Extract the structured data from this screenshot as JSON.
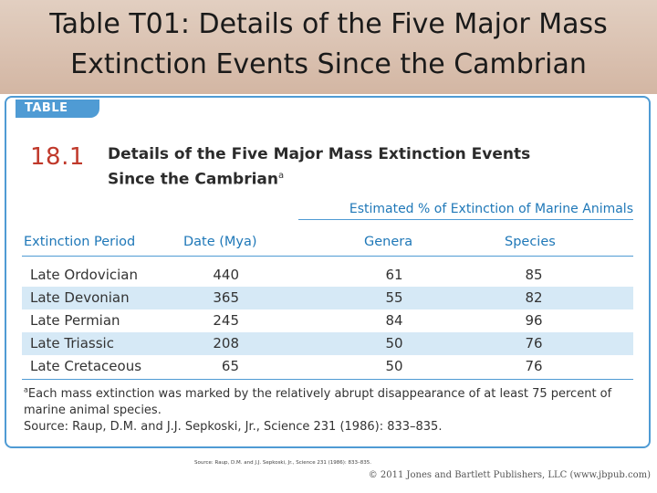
{
  "slide": {
    "title_line1": "Table T01: Details of the Five Major Mass",
    "title_line2": "Extinction Events Since the Cambrian"
  },
  "table": {
    "tab_label": "TABLE",
    "number": "18.1",
    "heading_line1": "Details of the Five Major Mass Extinction Events",
    "heading_line2": "Since the Cambrian",
    "heading_note_mark": "a",
    "spanner": "Estimated % of Extinction of Marine Animals",
    "columns": [
      "Extinction Period",
      "Date (Mya)",
      "Genera",
      "Species"
    ],
    "rows": [
      {
        "period": "Late Ordovician",
        "date": "440",
        "genera": "61",
        "species": "85"
      },
      {
        "period": "Late Devonian",
        "date": "365",
        "genera": "55",
        "species": "82"
      },
      {
        "period": "Late Permian",
        "date": "245",
        "genera": "84",
        "species": "96"
      },
      {
        "period": "Late Triassic",
        "date": "208",
        "genera": "50",
        "species": "76"
      },
      {
        "period": "Late Cretaceous",
        "date": "65",
        "genera": "50",
        "species": "76"
      }
    ],
    "footnote_mark": "a",
    "footnote": "Each mass extinction was marked by the relatively abrupt disappearance of at least 75 percent of marine animal species.",
    "source": "Source: Raup, D.M. and J.J. Sepkoski, Jr., Science 231 (1986): 833–835."
  },
  "slide_source": "Source: Raup, D.M. and J.J. Sepkoski, Jr., Science 231 (1986): 833–835.",
  "copyright": "© 2011 Jones and Bartlett Publishers, LLC (www.jbpub.com)"
}
